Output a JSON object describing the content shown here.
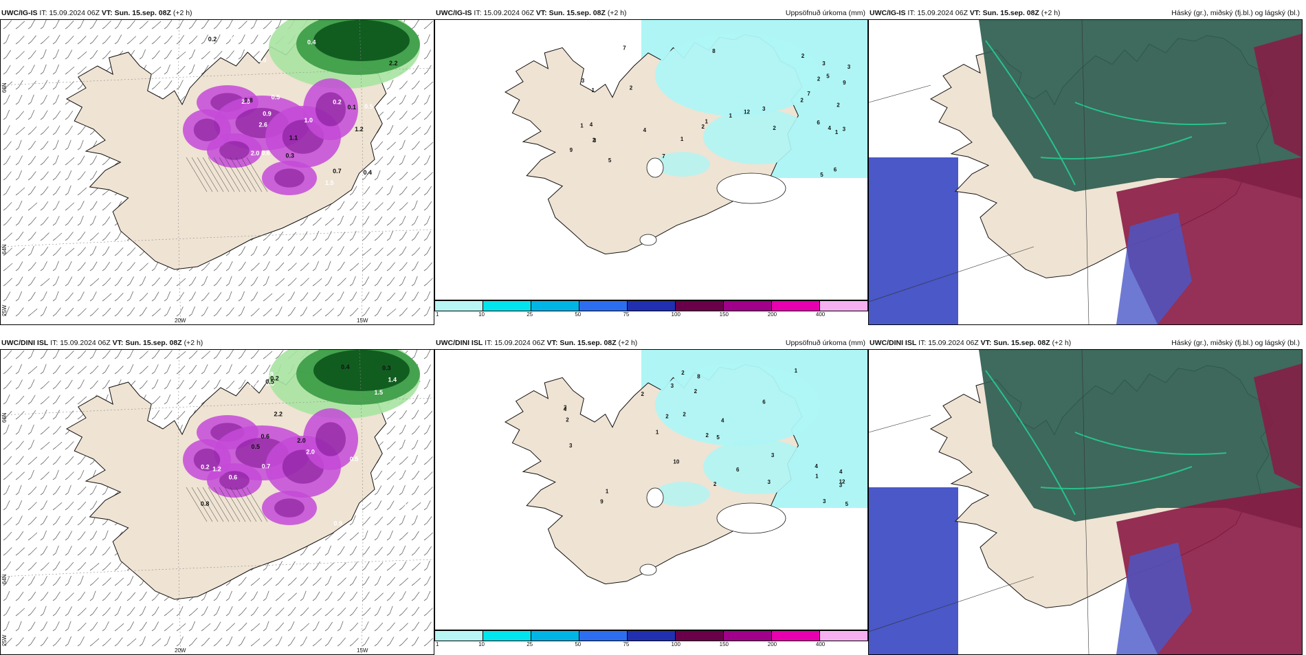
{
  "rows": [
    {
      "model_label": "UWC/IG-IS",
      "panels": [
        {
          "kind": "wind",
          "header": {
            "model": "UWC/IG-IS",
            "it_label": "IT:",
            "it_value": "15.09.2024 06Z",
            "vt_label": "VT:",
            "vt_value": "Sun. 15.sep. 08Z",
            "lead": "(+2 h)",
            "right_title": ""
          },
          "axis": {
            "lat_top": "66N",
            "lat_mid": "64N",
            "lon_left": "25W",
            "lon_a": "20W",
            "lon_b": "15W"
          },
          "values": [
            "1.1",
            "2.9",
            "0.7",
            "1.2",
            "2.3",
            "3.0",
            "0.3",
            "2.6",
            "0.6",
            "0.1",
            "0.5",
            "0.4",
            "0.2",
            "2.8",
            "0.9",
            "0.7",
            "1.0",
            "2.5",
            "2.2",
            "0.5",
            "1.6",
            "0.8",
            "1.5",
            "2.0",
            "0.4",
            "0.2"
          ]
        },
        {
          "kind": "precip",
          "header": {
            "model": "UWC/IG-IS",
            "it_label": "IT:",
            "it_value": "15.09.2024 06Z",
            "vt_label": "VT:",
            "vt_value": "Sun. 15.sep. 08Z",
            "lead": "(+2 h)",
            "right_title": "Uppsöfnuð úrkoma (mm)"
          },
          "values": [
            "2",
            "3",
            "3",
            "7",
            "4",
            "2",
            "5",
            "4",
            "5",
            "7",
            "8",
            "9",
            "12",
            "9",
            "6",
            "2",
            "3",
            "1",
            "2",
            "7",
            "3",
            "2",
            "6",
            "2",
            "3",
            "1",
            "2",
            "5",
            "4",
            "3",
            "1",
            "2",
            "1",
            "1",
            "1"
          ]
        },
        {
          "kind": "cloud",
          "header": {
            "model": "UWC/IG-IS",
            "it_label": "IT:",
            "it_value": "15.09.2024 06Z",
            "vt_label": "VT:",
            "vt_value": "Sun. 15.sep. 08Z",
            "lead": "(+2 h)",
            "right_title": "Háský (gr.), miðský (fj.bl.) og lágský (bl.)"
          }
        }
      ]
    },
    {
      "model_label": "UWC/DINI ISL",
      "panels": [
        {
          "kind": "wind",
          "header": {
            "model": "UWC/DINI ISL",
            "it_label": "IT:",
            "it_value": "15.09.2024 06Z",
            "vt_label": "VT:",
            "vt_value": "Sun. 15.sep. 08Z",
            "lead": "(+2 h)",
            "right_title": ""
          },
          "axis": {
            "lat_top": "66N",
            "lat_mid": "64N",
            "lon_left": "25W",
            "lon_a": "20W",
            "lon_b": "15W"
          },
          "values": [
            "2.0",
            "0.2",
            "1.0",
            "0.6",
            "0.9",
            "1.5",
            "0.8",
            "2.1",
            "0.5",
            "0.3",
            "0.7",
            "1.2",
            "2.2",
            "2.5",
            "0.6",
            "0.4",
            "1.3",
            "0.9",
            "0.5",
            "2.0",
            "1.4",
            "0.2",
            "1.0",
            "0.6",
            "0.5"
          ]
        },
        {
          "kind": "precip",
          "header": {
            "model": "UWC/DINI ISL",
            "it_label": "IT:",
            "it_value": "15.09.2024 06Z",
            "vt_label": "VT:",
            "vt_value": "Sun. 15.sep. 08Z",
            "lead": "(+2 h)",
            "right_title": "Uppsöfnuð úrkoma (mm)"
          },
          "values": [
            "2",
            "3",
            "2",
            "4",
            "3",
            "5",
            "8",
            "5",
            "6",
            "10",
            "3",
            "4",
            "12",
            "9",
            "3",
            "2",
            "6",
            "2",
            "2",
            "3",
            "4",
            "3",
            "2",
            "1",
            "2",
            "1",
            "1",
            "2",
            "4",
            "3",
            "1"
          ]
        },
        {
          "kind": "cloud",
          "header": {
            "model": "UWC/DINI ISL",
            "it_label": "IT:",
            "it_value": "15.09.2024 06Z",
            "vt_label": "VT:",
            "vt_value": "Sun. 15.sep. 08Z",
            "lead": "(+2 h)",
            "right_title": "Háský (gr.), miðský (fj.bl.) og lágský (bl.)"
          }
        }
      ]
    }
  ],
  "precip_legend": {
    "ticks": [
      "1",
      "10",
      "25",
      "50",
      "75",
      "100",
      "150",
      "200",
      "400"
    ],
    "colors": [
      "#b8f5f5",
      "#00e5ee",
      "#00b4e6",
      "#2d6ef0",
      "#2030b0",
      "#6a004a",
      "#a0008a",
      "#e800b0",
      "#f5b0f0"
    ]
  },
  "colors": {
    "land": "#efe3d3",
    "coast": "#111111",
    "precip_light": "#aff5f5",
    "green_dark": "#0f5a1e",
    "green_mid": "#3a9a44",
    "green_light": "#a9e3a2",
    "violet": "#c44ad8",
    "violet_dark": "#7c1490",
    "cloud_high": "#2f5d50",
    "cloud_mid": "#8a1a44",
    "cloud_low": "#4a58c8"
  }
}
